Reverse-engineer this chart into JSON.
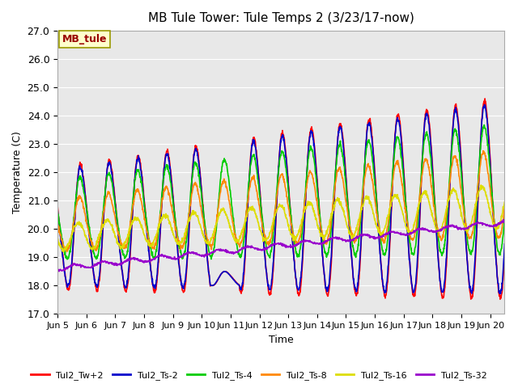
{
  "title": "MB Tule Tower: Tule Temps 2 (3/23/17-now)",
  "xlabel": "Time",
  "ylabel": "Temperature (C)",
  "ylim": [
    17.0,
    27.0
  ],
  "yticks": [
    17.0,
    18.0,
    19.0,
    20.0,
    21.0,
    22.0,
    23.0,
    24.0,
    25.0,
    26.0,
    27.0
  ],
  "bg_color": "#e8e8e8",
  "fig_color": "#ffffff",
  "series_colors": {
    "Tul2_Tw+2": "#ff0000",
    "Tul2_Ts-2": "#0000cc",
    "Tul2_Ts-4": "#00cc00",
    "Tul2_Ts-8": "#ff8800",
    "Tul2_Ts-16": "#dddd00",
    "Tul2_Ts-32": "#9900cc"
  },
  "xtick_labels": [
    "Jun 5",
    "Jun 6",
    "Jun 7",
    "Jun 8",
    "Jun 9",
    "Jun 10",
    "Jun 11",
    "Jun 12",
    "Jun 13",
    "Jun 14",
    "Jun 15",
    "Jun 16",
    "Jun 17",
    "Jun 18",
    "Jun 19",
    "Jun 20"
  ],
  "station_label": "MB_tule",
  "station_label_color": "#990000",
  "station_box_color": "#ffffcc"
}
